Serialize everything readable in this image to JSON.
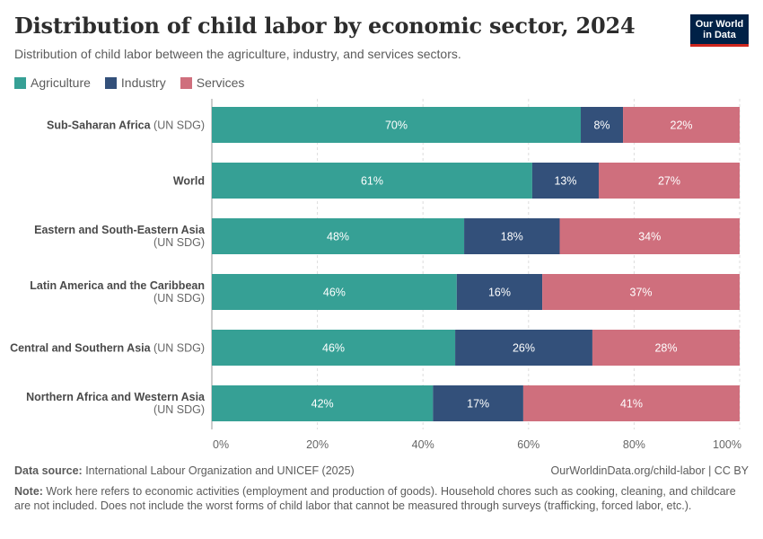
{
  "header": {
    "title": "Distribution of child labor by economic sector, 2024",
    "subtitle": "Distribution of child labor between the agriculture, industry, and services sectors.",
    "logo_line1": "Our World",
    "logo_line2": "in Data"
  },
  "colors": {
    "agriculture": "#36a095",
    "industry": "#33507a",
    "services": "#cf6f7d",
    "logo_bg": "#002147",
    "logo_accent": "#ce261e"
  },
  "footer": {
    "source_label": "Data source:",
    "source_text": " International Labour Organization and UNICEF (2025)",
    "url_text": "OurWorldinData.org/child-labor | CC BY",
    "note_label": "Note:",
    "note_text": " Work here refers to economic activities (employment and production of goods). Household chores such as cooking, cleaning, and childcare are not included. Does not include the worst forms of child labor that cannot be measured through surveys (trafficking, forced labor, etc.)."
  },
  "chart_data": {
    "type": "bar",
    "orientation": "horizontal",
    "stacked": true,
    "normalized_percent": true,
    "title": "Distribution of child labor by economic sector, 2024",
    "subtitle": "Distribution of child labor between the agriculture, industry, and services sectors.",
    "legend_position": "top-left",
    "xlim": [
      0,
      100
    ],
    "xticks": [
      "0%",
      "20%",
      "40%",
      "60%",
      "80%",
      "100%"
    ],
    "grid": "vertical-dashed",
    "categories": [
      {
        "name": "Sub-Saharan Africa",
        "suffix": " (UN SDG)",
        "wrap": false
      },
      {
        "name": "World",
        "suffix": "",
        "wrap": false
      },
      {
        "name": "Eastern and South-Eastern Asia",
        "suffix": "(UN SDG)",
        "wrap": true
      },
      {
        "name": "Latin America and the Caribbean",
        "suffix": "(UN SDG)",
        "wrap": true
      },
      {
        "name": "Central and Southern Asia",
        "suffix": " (UN SDG)",
        "wrap": false
      },
      {
        "name": "Northern Africa and Western Asia",
        "suffix": "(UN SDG)",
        "wrap": true
      }
    ],
    "series": [
      {
        "name": "Agriculture",
        "color": "#36a095",
        "values": [
          69.9,
          60.7,
          47.8,
          46.4,
          46.1,
          41.9
        ],
        "labels": [
          "70%",
          "61%",
          "48%",
          "46%",
          "46%",
          "42%"
        ]
      },
      {
        "name": "Industry",
        "color": "#33507a",
        "values": [
          8.0,
          12.6,
          18.1,
          16.2,
          26.0,
          17.1
        ],
        "labels": [
          "8%",
          "13%",
          "18%",
          "16%",
          "26%",
          "17%"
        ]
      },
      {
        "name": "Services",
        "color": "#cf6f7d",
        "values": [
          22.1,
          26.7,
          34.1,
          37.4,
          27.9,
          41.0
        ],
        "labels": [
          "22%",
          "27%",
          "34%",
          "37%",
          "28%",
          "41%"
        ]
      }
    ]
  }
}
